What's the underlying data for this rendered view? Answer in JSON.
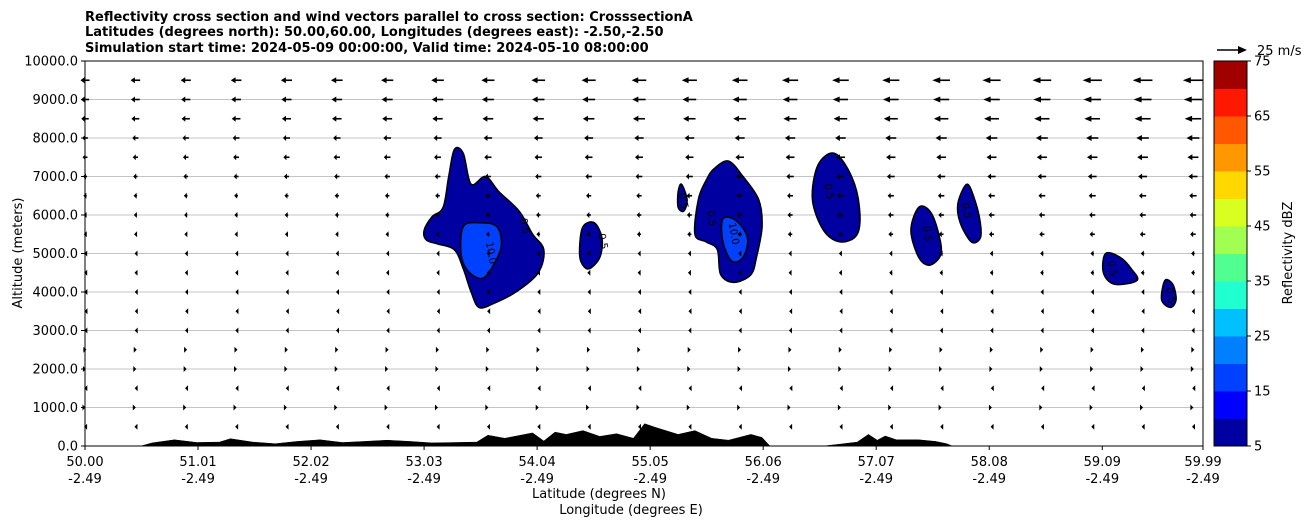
{
  "chart_data": {
    "type": "contourf",
    "title_lines": [
      "Reflectivity cross section and wind vectors parallel to cross section: CrosssectionA",
      "Latitudes (degrees north): 50.00,60.00, Longitudes (degrees east): -2.50,-2.50",
      "Simulation start time: 2024-05-09 00:00:00, Valid time: 2024-05-10 08:00:00"
    ],
    "ylabel": "Altitude (meters)",
    "xlabel_lat": "Latitude (degrees N)",
    "xlabel_lon": "Longitude (degrees E)",
    "xlim": [
      50.0,
      59.99
    ],
    "ylim": [
      0,
      10000
    ],
    "y_ticks": [
      0,
      1000,
      2000,
      3000,
      4000,
      5000,
      6000,
      7000,
      8000,
      9000,
      10000
    ],
    "y_tick_labels": [
      "0.0",
      "1000.0",
      "2000.0",
      "3000.0",
      "4000.0",
      "5000.0",
      "6000.0",
      "7000.0",
      "8000.0",
      "9000.0",
      "10000.0"
    ],
    "x_ticks": [
      50.0,
      51.01,
      52.02,
      53.03,
      54.04,
      55.05,
      56.06,
      57.07,
      58.08,
      59.09,
      59.99
    ],
    "x_tick_labels_lat": [
      "50.00",
      "51.01",
      "52.02",
      "53.03",
      "54.04",
      "55.05",
      "56.06",
      "57.07",
      "58.08",
      "59.09",
      "59.99"
    ],
    "x_tick_labels_lon": [
      "-2.49",
      "-2.49",
      "-2.49",
      "-2.49",
      "-2.49",
      "-2.49",
      "-2.49",
      "-2.49",
      "-2.49",
      "-2.49",
      "-2.49"
    ],
    "grid": "horizontal",
    "colorbar": {
      "label": "Reflectivity dBZ",
      "levels": [
        5,
        10,
        15,
        20,
        25,
        30,
        35,
        40,
        45,
        50,
        55,
        60,
        65,
        70,
        75
      ],
      "tick_labels": [
        "5",
        "15",
        "25",
        "35",
        "45",
        "55",
        "65",
        "75"
      ],
      "tick_values": [
        5,
        15,
        25,
        35,
        45,
        55,
        65,
        75
      ],
      "colors": [
        "#0000a0",
        "#0000ff",
        "#0040ff",
        "#0080ff",
        "#00c0ff",
        "#20ffd0",
        "#50ff90",
        "#a0ff50",
        "#d8ff20",
        "#ffd800",
        "#ff9800",
        "#ff5800",
        "#ff1800",
        "#a00000"
      ]
    },
    "contour_label_texts": [
      "0.5",
      "10.0"
    ],
    "quiver_key": {
      "label": "25 m/s",
      "value": 25
    },
    "reflectivity_cells": [
      {
        "outer": [
          [
            53.03,
            5600
          ],
          [
            53.1,
            5950
          ],
          [
            53.2,
            6200
          ],
          [
            53.25,
            7000
          ],
          [
            53.3,
            7700
          ],
          [
            53.38,
            7600
          ],
          [
            53.45,
            6800
          ],
          [
            53.58,
            7000
          ],
          [
            53.7,
            6600
          ],
          [
            53.88,
            6100
          ],
          [
            54.0,
            5500
          ],
          [
            54.1,
            5100
          ],
          [
            54.05,
            4500
          ],
          [
            53.85,
            4000
          ],
          [
            53.65,
            3700
          ],
          [
            53.52,
            3600
          ],
          [
            53.45,
            4000
          ],
          [
            53.38,
            4600
          ],
          [
            53.3,
            5100
          ],
          [
            53.15,
            5250
          ],
          [
            53.05,
            5350
          ]
        ],
        "inner": [
          [
            53.38,
            5700
          ],
          [
            53.52,
            5800
          ],
          [
            53.68,
            5700
          ],
          [
            53.72,
            5200
          ],
          [
            53.65,
            4700
          ],
          [
            53.55,
            4350
          ],
          [
            53.42,
            4550
          ],
          [
            53.36,
            5000
          ]
        ]
      },
      {
        "outer": [
          [
            54.42,
            5200
          ],
          [
            54.45,
            5700
          ],
          [
            54.55,
            5800
          ],
          [
            54.62,
            5400
          ],
          [
            54.6,
            4900
          ],
          [
            54.5,
            4600
          ],
          [
            54.43,
            4800
          ]
        ]
      },
      {
        "outer": [
          [
            55.3,
            6600
          ],
          [
            55.33,
            6800
          ],
          [
            55.38,
            6400
          ],
          [
            55.35,
            6100
          ],
          [
            55.3,
            6200
          ]
        ]
      },
      {
        "outer": [
          [
            55.45,
            5500
          ],
          [
            55.48,
            6400
          ],
          [
            55.55,
            6900
          ],
          [
            55.62,
            7200
          ],
          [
            55.75,
            7400
          ],
          [
            55.88,
            7000
          ],
          [
            56.02,
            6400
          ],
          [
            56.05,
            5700
          ],
          [
            56.0,
            4900
          ],
          [
            55.95,
            4450
          ],
          [
            55.8,
            4250
          ],
          [
            55.68,
            4450
          ],
          [
            55.65,
            5100
          ],
          [
            55.55,
            5300
          ]
        ],
        "inner": [
          [
            55.7,
            5900
          ],
          [
            55.82,
            5850
          ],
          [
            55.92,
            5400
          ],
          [
            55.88,
            4900
          ],
          [
            55.78,
            4800
          ],
          [
            55.7,
            5300
          ]
        ]
      },
      {
        "outer": [
          [
            56.5,
            6400
          ],
          [
            56.55,
            7300
          ],
          [
            56.7,
            7600
          ],
          [
            56.85,
            7000
          ],
          [
            56.92,
            6200
          ],
          [
            56.9,
            5500
          ],
          [
            56.75,
            5300
          ],
          [
            56.6,
            5600
          ]
        ]
      },
      {
        "outer": [
          [
            57.38,
            5600
          ],
          [
            57.45,
            6200
          ],
          [
            57.55,
            6100
          ],
          [
            57.62,
            5600
          ],
          [
            57.65,
            5000
          ],
          [
            57.55,
            4700
          ],
          [
            57.45,
            4900
          ]
        ]
      },
      {
        "outer": [
          [
            57.8,
            6300
          ],
          [
            57.88,
            6800
          ],
          [
            57.95,
            6400
          ],
          [
            58.0,
            5800
          ],
          [
            58.0,
            5400
          ],
          [
            57.92,
            5300
          ],
          [
            57.82,
            5800
          ]
        ]
      },
      {
        "outer": [
          [
            59.1,
            4500
          ],
          [
            59.12,
            5000
          ],
          [
            59.25,
            4900
          ],
          [
            59.35,
            4600
          ],
          [
            59.4,
            4300
          ],
          [
            59.2,
            4200
          ]
        ]
      },
      {
        "outer": [
          [
            59.62,
            3800
          ],
          [
            59.65,
            4300
          ],
          [
            59.72,
            4200
          ],
          [
            59.75,
            3800
          ],
          [
            59.7,
            3600
          ]
        ]
      }
    ],
    "terrain": [
      [
        50.0,
        0
      ],
      [
        50.5,
        0
      ],
      [
        50.6,
        80
      ],
      [
        50.8,
        160
      ],
      [
        51.0,
        90
      ],
      [
        51.2,
        100
      ],
      [
        51.3,
        190
      ],
      [
        51.5,
        100
      ],
      [
        51.7,
        60
      ],
      [
        51.9,
        120
      ],
      [
        52.1,
        160
      ],
      [
        52.3,
        90
      ],
      [
        52.5,
        120
      ],
      [
        52.7,
        150
      ],
      [
        52.9,
        120
      ],
      [
        53.1,
        80
      ],
      [
        53.3,
        90
      ],
      [
        53.5,
        100
      ],
      [
        53.6,
        280
      ],
      [
        53.75,
        200
      ],
      [
        54.0,
        340
      ],
      [
        54.1,
        130
      ],
      [
        54.2,
        360
      ],
      [
        54.3,
        300
      ],
      [
        54.45,
        400
      ],
      [
        54.6,
        250
      ],
      [
        54.75,
        320
      ],
      [
        54.9,
        200
      ],
      [
        55.0,
        580
      ],
      [
        55.1,
        480
      ],
      [
        55.3,
        300
      ],
      [
        55.45,
        400
      ],
      [
        55.6,
        200
      ],
      [
        55.75,
        150
      ],
      [
        55.95,
        300
      ],
      [
        56.05,
        220
      ],
      [
        56.12,
        0
      ],
      [
        56.6,
        0
      ],
      [
        56.75,
        50
      ],
      [
        56.9,
        100
      ],
      [
        57.0,
        300
      ],
      [
        57.08,
        150
      ],
      [
        57.15,
        260
      ],
      [
        57.25,
        160
      ],
      [
        57.45,
        160
      ],
      [
        57.6,
        120
      ],
      [
        57.7,
        60
      ],
      [
        57.75,
        0
      ],
      [
        59.99,
        0
      ]
    ],
    "wind_vectors": {
      "x": [
        50.0,
        50.45,
        50.9,
        51.35,
        51.8,
        52.25,
        52.7,
        53.15,
        53.6,
        54.05,
        54.5,
        54.95,
        55.4,
        55.85,
        56.3,
        56.75,
        57.2,
        57.65,
        58.1,
        58.55,
        59.0,
        59.45,
        59.9
      ],
      "y": [
        500,
        1000,
        1500,
        2000,
        2500,
        3000,
        3500,
        4000,
        4500,
        5000,
        5500,
        6000,
        6500,
        7000,
        7500,
        8000,
        8500,
        9000,
        9500
      ],
      "u_profile": [
        -2,
        1,
        -1.5,
        2,
        3,
        -3,
        -2.5,
        -3,
        -4,
        -4,
        -6,
        -7,
        -8,
        -10,
        -12,
        -14,
        -18,
        -20,
        -22
      ],
      "lat_factor_start": 0.45,
      "lat_factor_end": 1.0
    }
  }
}
